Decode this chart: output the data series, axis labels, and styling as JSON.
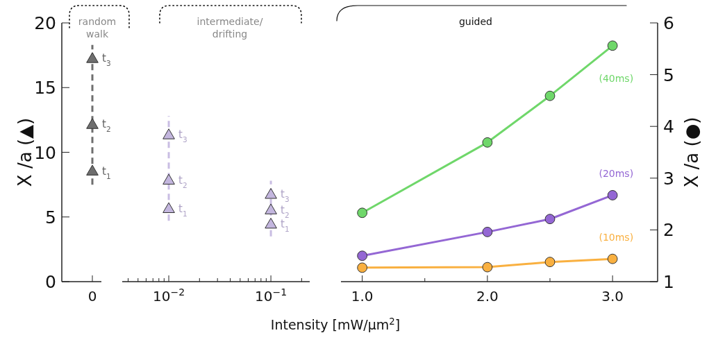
{
  "chart_data": [
    {
      "type": "scatter",
      "ylabel": "X /a (▲)",
      "ylim": [
        0,
        20
      ],
      "yticks": [
        0,
        5,
        10,
        15,
        20
      ],
      "categories": [
        "0"
      ],
      "annotations": [
        "random walk",
        "t$_{1}$",
        "t$_{2}$",
        "t$_{3}$"
      ],
      "series": [
        {
          "type": "line",
          "x": [
            "0",
            "0"
          ],
          "values": [
            7.5,
            18.3
          ],
          "color": "#6e6e6e",
          "line_style": "dashed",
          "marker": "none"
        },
        {
          "x": [
            "0",
            "0",
            "0"
          ],
          "values": [
            8.6,
            12.2,
            17.3
          ],
          "color": "#6e6e6e",
          "marker": "triangle"
        }
      ]
    },
    {
      "type": "scatter",
      "log": "x",
      "xlabel": "Intensity [mW/μm$^{2}$]",
      "ylim": [
        0,
        20
      ],
      "tick_labels": "x",
      "xlim": [
        0.0035,
        0.24
      ],
      "xticks": [
        {
          "value": 0.004,
          "label": null
        },
        {
          "value": 0.005,
          "label": null
        },
        {
          "value": 0.006,
          "label": null
        },
        {
          "value": 0.007,
          "label": null
        },
        {
          "value": 0.008,
          "label": null
        },
        {
          "value": 0.009,
          "label": null
        },
        {
          "value": 0.01,
          "label": "10$^{−2}$"
        },
        {
          "value": 0.02,
          "label": null
        },
        {
          "value": 0.03,
          "label": null
        },
        {
          "value": 0.04,
          "label": null
        },
        {
          "value": 0.05,
          "label": null
        },
        {
          "value": 0.06,
          "label": null
        },
        {
          "value": 0.07,
          "label": null
        },
        {
          "value": 0.08,
          "label": null
        },
        {
          "value": 0.09,
          "label": null
        },
        {
          "value": 0.1,
          "label": "10$^{−1}$"
        },
        {
          "value": 0.2,
          "label": null
        }
      ],
      "annotations": [
        "intermediate/ drifting",
        "t$_{1}$",
        "t$_{2}$",
        "t$_{3}$",
        "t$_{1}$",
        "t$_{2}$",
        "t$_{3}$"
      ],
      "series": [
        {
          "type": "line",
          "x": [
            0.01,
            0.01
          ],
          "values": [
            4.7,
            12.8
          ],
          "color": "#c9bde3",
          "line_style": "dashed",
          "marker": "none"
        },
        {
          "type": "line",
          "x": [
            0.1,
            0.1
          ],
          "values": [
            3.5,
            7.8
          ],
          "color": "#c9bde3",
          "line_style": "dashed",
          "marker": "none"
        },
        {
          "x": [
            0.01,
            0.01,
            0.01,
            0.1,
            0.1,
            0.1
          ],
          "values": [
            5.7,
            7.9,
            11.4,
            4.5,
            5.6,
            6.8
          ],
          "color": "#c3b6de",
          "marker": "triangle"
        }
      ]
    },
    {
      "type": "line",
      "xlim": [
        0.83,
        3.36
      ],
      "xticks": [
        {
          "value": 1,
          "label": "1.0"
        },
        {
          "value": 1.5,
          "label": null
        },
        {
          "value": 2,
          "label": "2.0"
        },
        {
          "value": 2.5,
          "label": null
        },
        {
          "value": 3,
          "label": "3.0"
        }
      ],
      "y2label": "X /a (●)",
      "y2lim": [
        1,
        6
      ],
      "y2ticks": [
        1,
        2,
        3,
        4,
        5,
        6
      ],
      "annotations": [
        "guided"
      ],
      "marker": "circle",
      "series": [
        {
          "name": "(40ms)",
          "color": "#6fd76a",
          "axis": "y2",
          "x": [
            1,
            2,
            2.5,
            3
          ],
          "values": [
            2.33,
            3.69,
            4.59,
            5.56
          ]
        },
        {
          "name": "(20ms)",
          "color": "#9467d4",
          "axis": "y2",
          "x": [
            1,
            2,
            2.5,
            3
          ],
          "values": [
            1.5,
            1.96,
            2.21,
            2.67
          ]
        },
        {
          "name": "(10ms)",
          "color": "#f9b040",
          "axis": "y2",
          "x": [
            1,
            2,
            2.5,
            3
          ],
          "values": [
            1.27,
            1.28,
            1.38,
            1.44
          ]
        }
      ]
    }
  ]
}
